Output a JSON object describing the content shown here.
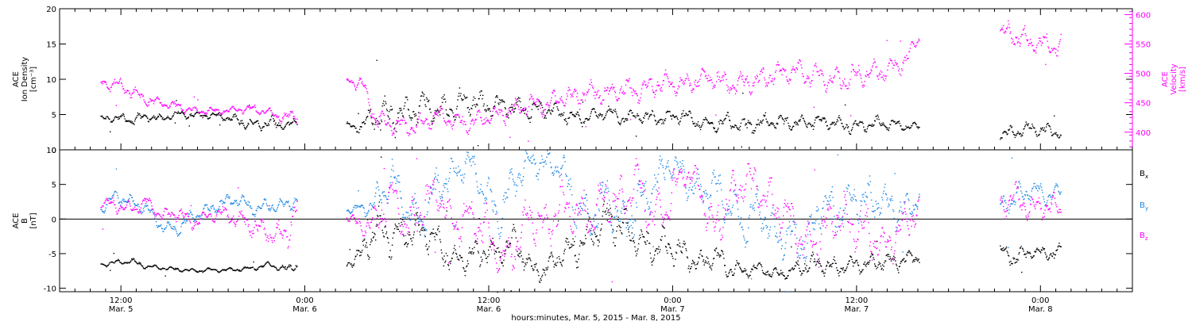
{
  "chart_data": [
    {
      "type": "scatter",
      "ylabel_lines": [
        "ACE",
        "Ion Density",
        "[cm⁻³]"
      ],
      "ylim": [
        0,
        20
      ],
      "yticks": [
        0,
        5,
        10,
        15,
        20
      ],
      "y2label_lines": [
        "ACE",
        "Velocity",
        "[km/s]"
      ],
      "y2lim": [
        370,
        610
      ],
      "y2ticks": [
        400,
        450,
        500,
        550,
        600
      ],
      "colors": {
        "density": "#000000",
        "velocity": "#ff00ff"
      },
      "series": [
        {
          "name": "Ion Density",
          "axis": "left",
          "color": "#000000",
          "t": [
            0,
            3,
            6,
            9,
            12,
            15,
            18,
            21,
            24,
            27,
            30,
            33,
            36,
            38.5,
            48,
            51,
            54,
            57,
            60,
            63,
            66,
            69,
            72,
            75,
            78,
            81,
            84,
            87,
            90,
            93,
            96,
            99,
            102,
            105,
            108,
            111,
            114,
            117,
            120,
            123,
            126,
            129,
            132,
            135,
            138,
            141,
            144,
            147,
            150,
            153,
            156,
            159,
            160.3,
            176,
            179,
            182,
            185,
            188
          ],
          "v": [
            4.4,
            4.6,
            4.3,
            4.8,
            4.5,
            5.2,
            4.9,
            5.0,
            4.8,
            4.1,
            3.6,
            3.9,
            3.5,
            4.0,
            3.5,
            3.3,
            5.2,
            4.9,
            5.5,
            6.3,
            5.5,
            6.2,
            7.0,
            6.3,
            6.4,
            6.0,
            5.5,
            6.0,
            5.2,
            4.5,
            4.8,
            5.5,
            4.5,
            5.0,
            4.5,
            4.6,
            5.0,
            3.8,
            3.6,
            4.2,
            3.4,
            3.8,
            4.2,
            3.8,
            4.0,
            4.2,
            3.8,
            3.3,
            3.6,
            3.9,
            3.5,
            3.4,
            3.3,
            2.3,
            2.6,
            3.1,
            2.8,
            2.5
          ],
          "spread": [
            0.5,
            0.5,
            0.8,
            0.6,
            0.5,
            0.5,
            0.5,
            0.5,
            0.5,
            1.0,
            0.7,
            1.0,
            0.5,
            0.7,
            0.4,
            1.0,
            2.5,
            2.5,
            2.0,
            2.5,
            2.0,
            2.0,
            2.0,
            2.0,
            1.5,
            1.5,
            1.5,
            1.5,
            1.2,
            1.0,
            1.0,
            1.0,
            1.0,
            1.0,
            1.0,
            1.0,
            1.0,
            1.0,
            1.0,
            1.2,
            1.2,
            1.2,
            1.2,
            1.0,
            1.0,
            1.0,
            1.0,
            1.0,
            1.0,
            1.0,
            0.8,
            0.6,
            0.5,
            0.8,
            1.0,
            1.0,
            1.0,
            1.0
          ]
        },
        {
          "name": "Velocity",
          "axis": "right",
          "color": "#ff00ff",
          "t": [
            0,
            3,
            6,
            9,
            12,
            15,
            18,
            21,
            24,
            27,
            30,
            33,
            36,
            38.5,
            48,
            51,
            54,
            57,
            60,
            63,
            66,
            69,
            72,
            75,
            78,
            81,
            84,
            87,
            90,
            93,
            96,
            99,
            102,
            105,
            108,
            111,
            114,
            117,
            120,
            123,
            126,
            129,
            132,
            135,
            138,
            141,
            144,
            147,
            150,
            153,
            156,
            159,
            160.3,
            176,
            179,
            182,
            185,
            188
          ],
          "v": [
            485,
            483,
            470,
            455,
            450,
            445,
            438,
            437,
            437,
            440,
            440,
            435,
            425,
            430,
            490,
            485,
            420,
            415,
            410,
            415,
            430,
            420,
            415,
            425,
            430,
            440,
            450,
            445,
            460,
            460,
            470,
            465,
            475,
            470,
            480,
            485,
            480,
            490,
            495,
            480,
            485,
            490,
            500,
            505,
            500,
            495,
            490,
            495,
            500,
            505,
            510,
            545,
            560,
            570,
            565,
            555,
            550,
            545
          ],
          "spread": [
            12,
            12,
            12,
            10,
            8,
            8,
            6,
            6,
            5,
            6,
            8,
            8,
            10,
            12,
            6,
            15,
            18,
            18,
            18,
            18,
            16,
            16,
            16,
            16,
            16,
            18,
            18,
            18,
            18,
            18,
            18,
            18,
            18,
            18,
            18,
            18,
            18,
            18,
            18,
            20,
            20,
            20,
            20,
            20,
            22,
            22,
            22,
            22,
            22,
            22,
            20,
            12,
            8,
            18,
            20,
            20,
            20,
            20
          ]
        }
      ]
    },
    {
      "type": "scatter",
      "ylabel_lines": [
        "ACE",
        "B",
        "[nT]"
      ],
      "ylim": [
        -10.5,
        10
      ],
      "yticks": [
        -10,
        -5,
        0,
        5,
        10
      ],
      "zero_line": true,
      "legend_placement": "right",
      "legend": [
        {
          "label": "B",
          "sub": "x",
          "color": "#000000"
        },
        {
          "label": "B",
          "sub": "y",
          "color": "#1e88e5"
        },
        {
          "label": "B",
          "sub": "z",
          "color": "#ff00ff"
        }
      ],
      "series": [
        {
          "name": "Bx",
          "color": "#000000",
          "t": [
            0,
            3,
            6,
            9,
            12,
            15,
            18,
            21,
            24,
            27,
            30,
            33,
            36,
            38.5,
            48,
            51,
            54,
            57,
            60,
            63,
            66,
            69,
            72,
            75,
            78,
            81,
            84,
            87,
            90,
            93,
            96,
            99,
            102,
            105,
            108,
            111,
            114,
            117,
            120,
            123,
            126,
            129,
            132,
            135,
            138,
            141,
            144,
            147,
            150,
            153,
            156,
            159,
            160.3,
            176,
            179,
            182,
            185,
            188
          ],
          "v": [
            -6.5,
            -6.2,
            -6.0,
            -6.8,
            -7.0,
            -7.2,
            -7.4,
            -7.3,
            -7.3,
            -7.2,
            -7.0,
            -6.5,
            -7.2,
            -6.5,
            -6.5,
            -5.0,
            -1.0,
            -2.5,
            -2.0,
            -1.5,
            -3.5,
            -6.0,
            -5.5,
            -4.5,
            -5.0,
            -3.0,
            -7.0,
            -7.5,
            -5.0,
            -4.0,
            -2.0,
            0.0,
            -1.0,
            -3.0,
            -4.0,
            -3.5,
            -5.0,
            -6.5,
            -5.0,
            -7.0,
            -7.5,
            -7.0,
            -8.0,
            -7.5,
            -6.5,
            -6.5,
            -7.0,
            -6.5,
            -6.5,
            -6.0,
            -6.0,
            -5.5,
            -5.5,
            -4.5,
            -5.5,
            -4.5,
            -5.0,
            -4.5
          ],
          "spread": [
            0.4,
            0.4,
            0.4,
            0.4,
            0.3,
            0.3,
            0.3,
            0.3,
            0.3,
            0.3,
            0.3,
            0.5,
            0.5,
            0.7,
            0.4,
            1.5,
            3.0,
            3.0,
            2.5,
            2.5,
            2.5,
            2.0,
            2.0,
            2.0,
            2.0,
            2.5,
            1.5,
            1.5,
            2.0,
            2.5,
            3.0,
            3.0,
            3.0,
            2.5,
            2.5,
            2.5,
            2.0,
            1.5,
            2.0,
            1.5,
            1.0,
            1.0,
            1.0,
            1.0,
            1.5,
            1.5,
            1.2,
            1.2,
            1.2,
            1.2,
            1.2,
            1.2,
            1.0,
            1.0,
            1.5,
            1.0,
            1.0,
            1.0
          ]
        },
        {
          "name": "By",
          "color": "#1e88e5",
          "t": [
            0,
            3,
            6,
            9,
            12,
            15,
            18,
            21,
            24,
            27,
            30,
            33,
            36,
            38.5,
            48,
            51,
            54,
            57,
            60,
            63,
            66,
            69,
            72,
            75,
            78,
            81,
            84,
            87,
            90,
            93,
            96,
            99,
            102,
            105,
            108,
            111,
            114,
            117,
            120,
            123,
            126,
            129,
            132,
            135,
            138,
            141,
            144,
            147,
            150,
            153,
            156,
            159,
            160.3,
            176,
            179,
            182,
            185,
            188
          ],
          "v": [
            1.5,
            3.5,
            2.5,
            1.5,
            -1.0,
            -1.5,
            0.5,
            1.5,
            2.5,
            3.0,
            1.5,
            2.0,
            2.0,
            3.0,
            1.5,
            1.5,
            2.5,
            6.0,
            1.0,
            0.0,
            5.0,
            6.5,
            8.5,
            4.0,
            0.5,
            6.0,
            8.5,
            8.0,
            8.0,
            1.5,
            0.0,
            3.5,
            -1.0,
            2.0,
            5.0,
            8.0,
            6.5,
            4.0,
            5.0,
            2.0,
            -1.0,
            2.0,
            -2.5,
            -2.0,
            -4.0,
            2.5,
            0.5,
            3.0,
            2.5,
            3.0,
            1.0,
            2.0,
            4.0,
            2.0,
            3.0,
            4.5,
            3.5,
            4.0
          ],
          "spread": [
            1.0,
            1.0,
            1.0,
            1.0,
            1.0,
            1.0,
            1.0,
            1.0,
            1.0,
            1.0,
            1.0,
            1.0,
            1.0,
            1.0,
            0.5,
            1.0,
            2.5,
            2.5,
            2.5,
            3.0,
            3.0,
            2.5,
            2.0,
            3.0,
            3.5,
            3.0,
            2.0,
            2.0,
            2.0,
            3.5,
            3.5,
            3.5,
            3.5,
            3.5,
            3.0,
            2.0,
            2.5,
            3.0,
            3.0,
            3.5,
            3.5,
            3.5,
            3.0,
            3.0,
            3.0,
            3.0,
            3.5,
            3.0,
            3.0,
            2.5,
            2.5,
            2.0,
            1.5,
            1.5,
            2.0,
            1.5,
            1.5,
            1.0
          ]
        },
        {
          "name": "Bz",
          "color": "#ff00ff",
          "t": [
            0,
            3,
            6,
            9,
            12,
            15,
            18,
            21,
            24,
            27,
            30,
            33,
            36,
            38.5,
            48,
            51,
            54,
            57,
            60,
            63,
            66,
            69,
            72,
            75,
            78,
            81,
            84,
            87,
            90,
            93,
            96,
            99,
            102,
            105,
            108,
            111,
            114,
            117,
            120,
            123,
            126,
            129,
            132,
            135,
            138,
            141,
            144,
            147,
            150,
            153,
            156,
            159,
            160.3,
            176,
            179,
            182,
            185,
            188
          ],
          "v": [
            2.5,
            2.0,
            1.5,
            2.5,
            0.5,
            1.0,
            -0.5,
            0.5,
            1.0,
            0.0,
            -1.0,
            -2.0,
            -2.5,
            2.0,
            0.5,
            -1.0,
            -0.5,
            4.0,
            -1.5,
            2.0,
            4.0,
            -1.0,
            0.5,
            -1.0,
            -6.0,
            -4.0,
            1.0,
            -1.5,
            2.0,
            1.0,
            0.5,
            3.5,
            2.0,
            6.0,
            0.0,
            2.5,
            7.0,
            5.0,
            -2.0,
            3.0,
            6.0,
            4.0,
            2.0,
            0.0,
            -4.0,
            -2.0,
            1.0,
            -1.0,
            -1.5,
            -4.0,
            -2.0,
            1.0,
            1.5,
            2.0,
            3.5,
            1.5,
            2.0,
            1.5
          ],
          "spread": [
            1.0,
            1.0,
            1.0,
            1.0,
            1.0,
            1.0,
            1.0,
            1.0,
            1.0,
            1.5,
            1.5,
            1.5,
            2.5,
            2.0,
            0.5,
            1.5,
            2.5,
            2.5,
            3.0,
            3.5,
            3.0,
            3.0,
            3.0,
            3.5,
            2.0,
            3.0,
            3.5,
            3.5,
            3.5,
            3.5,
            3.5,
            3.5,
            3.5,
            3.0,
            3.5,
            3.5,
            2.0,
            2.5,
            3.5,
            3.5,
            3.0,
            3.5,
            3.5,
            3.5,
            3.0,
            3.5,
            3.5,
            3.5,
            3.5,
            3.0,
            3.0,
            2.5,
            2.0,
            2.0,
            2.0,
            2.0,
            2.0,
            1.5
          ]
        }
      ]
    }
  ],
  "x_axis": {
    "range_hours": [
      -8,
      202
    ],
    "xlabel": "hours:minutes, Mar.  5, 2015 - Mar.  8, 2015",
    "ticks": [
      {
        "at": 4,
        "time": "12:00",
        "date": "Mar. 5"
      },
      {
        "at": 40,
        "time": "0:00",
        "date": "Mar. 6"
      },
      {
        "at": 76,
        "time": "12:00",
        "date": "Mar. 6"
      },
      {
        "at": 112,
        "time": "0:00",
        "date": "Mar. 7"
      },
      {
        "at": 148,
        "time": "12:00",
        "date": "Mar. 7"
      },
      {
        "at": 184,
        "time": "0:00",
        "date": "Mar. 8"
      }
    ]
  }
}
